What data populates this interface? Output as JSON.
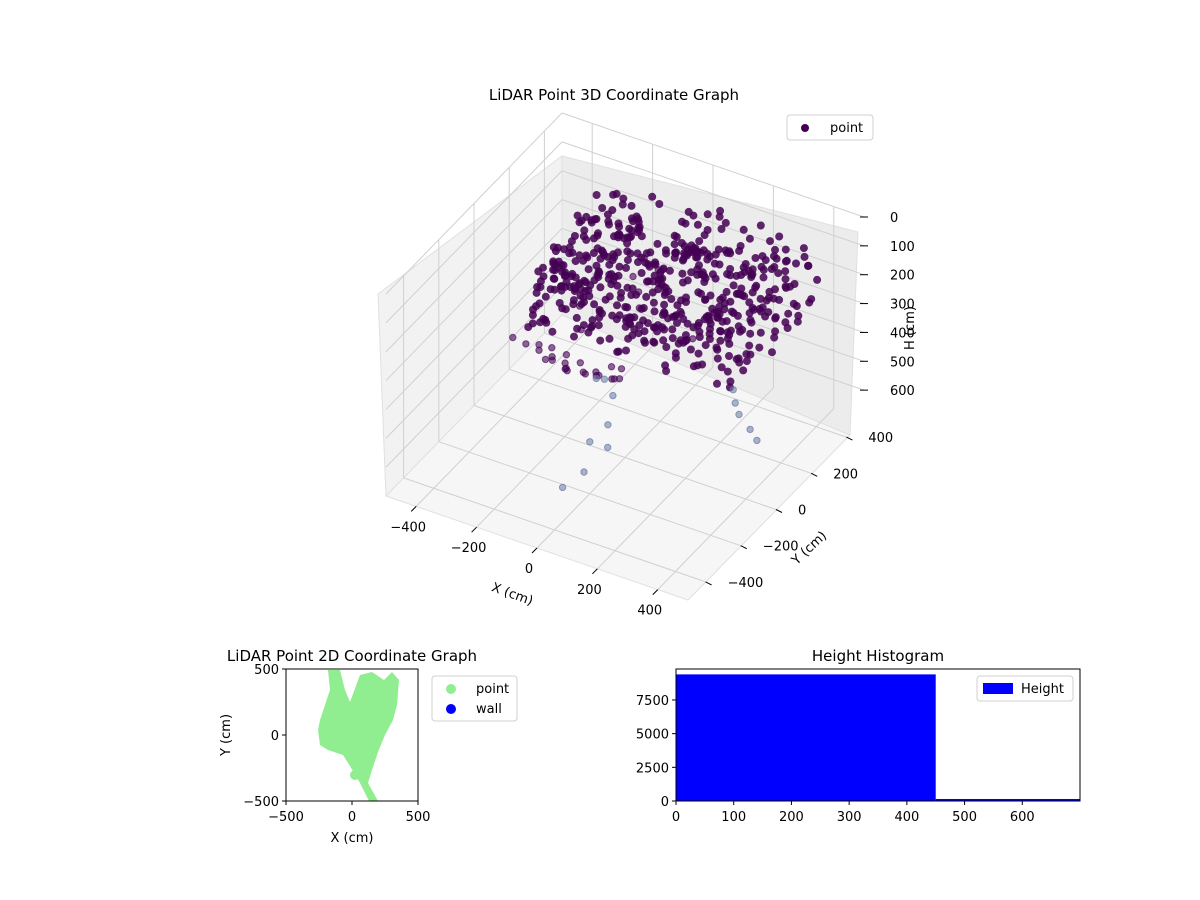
{
  "colors": {
    "point_3d": "#440154",
    "point_3d_light": "#7383ad",
    "point_2d": "#90ee90",
    "wall": "#0000ff",
    "hist_bar": "#0000ff",
    "pane": "#f2f2f2",
    "grid": "#d0d0d0"
  },
  "chart_data": [
    {
      "type": "scatter",
      "title": "LiDAR Point 3D Coordinate Graph",
      "xlabel": "X (cm)",
      "ylabel": "Y (cm)",
      "zlabel": "H (cm)",
      "x_ticks": [
        "−400",
        "−200",
        "0",
        "200",
        "400"
      ],
      "y_ticks": [
        "−400",
        "−200",
        "0",
        "200",
        "400"
      ],
      "z_ticks": [
        "0",
        "100",
        "200",
        "300",
        "400",
        "500",
        "600"
      ],
      "xlim": [
        -500,
        500
      ],
      "ylim": [
        -500,
        500
      ],
      "zlim": [
        0,
        700
      ],
      "z_inverted": true,
      "legend": [
        "point"
      ],
      "legend_position": "top-right",
      "series": [
        {
          "name": "point",
          "points": [
            [
              20,
              -450,
              30
            ],
            [
              -40,
              -420,
              60
            ],
            [
              10,
              -430,
              90
            ],
            [
              -30,
              -400,
              120
            ],
            [
              30,
              -380,
              150
            ],
            [
              0,
              -340,
              180
            ],
            [
              -20,
              -300,
              210
            ],
            [
              20,
              -260,
              240
            ],
            [
              -10,
              -220,
              270
            ],
            [
              10,
              -180,
              300
            ],
            [
              -5,
              -140,
              330
            ],
            [
              15,
              -100,
              360
            ],
            [
              0,
              -60,
              390
            ],
            [
              120,
              -460,
              40
            ],
            [
              160,
              -440,
              70
            ],
            [
              80,
              -470,
              20
            ],
            [
              200,
              -420,
              50
            ],
            [
              -150,
              -380,
              100
            ],
            [
              -130,
              -340,
              140
            ],
            [
              -110,
              -300,
              180
            ],
            [
              -90,
              -260,
              220
            ],
            [
              -70,
              -220,
              260
            ],
            [
              300,
              100,
              420
            ],
            [
              330,
              60,
              430
            ],
            [
              360,
              30,
              440
            ],
            [
              420,
              -10,
              445
            ],
            [
              460,
              -40,
              450
            ],
            [
              40,
              40,
              20
            ],
            [
              60,
              60,
              45
            ],
            [
              80,
              80,
              70
            ],
            [
              60,
              100,
              95
            ],
            [
              40,
              120,
              110
            ],
            [
              -20,
              80,
              130
            ],
            [
              10,
              60,
              160
            ],
            [
              30,
              30,
              190
            ],
            [
              -220,
              120,
              330
            ],
            [
              -180,
              60,
              360
            ],
            [
              -60,
              -60,
              410
            ],
            [
              0,
              -20,
              380
            ],
            [
              40,
              -100,
              350
            ],
            [
              20,
              200,
              230
            ],
            [
              100,
              150,
              260
            ],
            [
              160,
              110,
              300
            ],
            [
              -80,
              20,
              470
            ],
            [
              -40,
              0,
              500
            ],
            [
              -10,
              -80,
              540
            ],
            [
              30,
              -150,
              560
            ],
            [
              10,
              -250,
              590
            ],
            [
              -20,
              -320,
              610
            ],
            [
              0,
              -200,
              520
            ]
          ],
          "cluster": {
            "description": "dense point cloud",
            "x_range": [
              -300,
              400
            ],
            "y_range": [
              -100,
              450
            ],
            "h_range": [
              100,
              300
            ]
          }
        }
      ]
    },
    {
      "type": "scatter",
      "title": "LiDAR Point 2D Coordinate Graph",
      "xlabel": "X (cm)",
      "ylabel": "Y (cm)",
      "xlim": [
        -500,
        500
      ],
      "ylim": [
        -500,
        500
      ],
      "x_ticks": [
        "−500",
        "0",
        "500"
      ],
      "y_ticks": [
        "500",
        "0",
        "−500"
      ],
      "legend": [
        "point",
        "wall"
      ],
      "legend_position": "outside-right",
      "series": [
        {
          "name": "point",
          "region": "dense cluster",
          "x_range": [
            -260,
            340
          ],
          "y_range": [
            -500,
            500
          ]
        },
        {
          "name": "wall",
          "points": []
        }
      ]
    },
    {
      "type": "bar",
      "title": "Height Histogram",
      "xlim": [
        0,
        700
      ],
      "ylim": [
        0,
        9800
      ],
      "x_ticks": [
        "0",
        "100",
        "200",
        "300",
        "400",
        "500",
        "600"
      ],
      "y_ticks": [
        "0",
        "2500",
        "5000",
        "7500"
      ],
      "legend": [
        "Height"
      ],
      "legend_position": "top-right",
      "bins": [
        {
          "start": 0,
          "end": 450,
          "value": 9400
        },
        {
          "start": 450,
          "end": 700,
          "value": 150
        }
      ]
    }
  ]
}
